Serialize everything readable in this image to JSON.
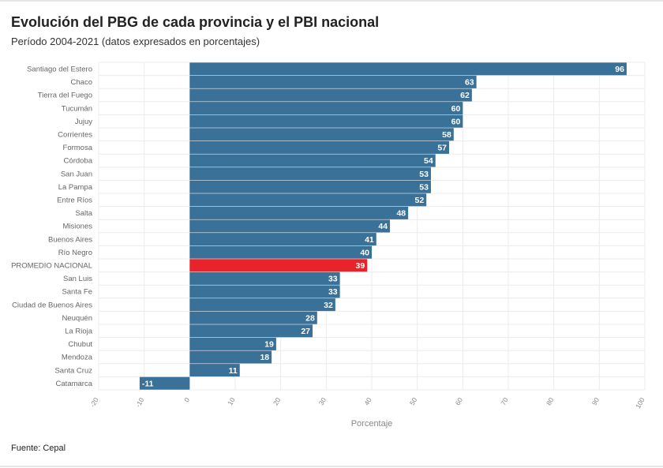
{
  "header": {
    "title": "Evolución del PBG de cada provincia y el PBI nacional",
    "subtitle": "Período 2004-2021 (datos expresados en porcentajes)"
  },
  "footer": {
    "source": "Fuente: Cepal"
  },
  "colors": {
    "bar": "#3a7199",
    "highlight": "#e8232b",
    "grid": "#ececec"
  },
  "chart_data": {
    "type": "bar",
    "orientation": "horizontal",
    "categories": [
      "Santiago del Estero",
      "Chaco",
      "Tierra del Fuego",
      "Tucumán",
      "Jujuy",
      "Corrientes",
      "Formosa",
      "Córdoba",
      "San Juan",
      "La Pampa",
      "Entre Ríos",
      "Salta",
      "Misiones",
      "Buenos Aires",
      "Río Negro",
      "PROMEDIO NACIONAL",
      "San Luis",
      "Santa Fe",
      "Ciudad de Buenos Aires",
      "Neuquén",
      "La Rioja",
      "Chubut",
      "Mendoza",
      "Santa Cruz",
      "Catamarca"
    ],
    "values": [
      96,
      63,
      62,
      60,
      60,
      58,
      57,
      54,
      53,
      53,
      52,
      48,
      44,
      41,
      40,
      39,
      33,
      33,
      32,
      28,
      27,
      19,
      18,
      11,
      -11
    ],
    "highlight_category": "PROMEDIO NACIONAL",
    "xlim": [
      -20,
      100
    ],
    "xticks": [
      -20,
      -10,
      0,
      10,
      20,
      30,
      40,
      50,
      60,
      70,
      80,
      90,
      100
    ],
    "xlabel": "Porcentaje",
    "ylabel": "",
    "grid": true,
    "legend": "none"
  }
}
